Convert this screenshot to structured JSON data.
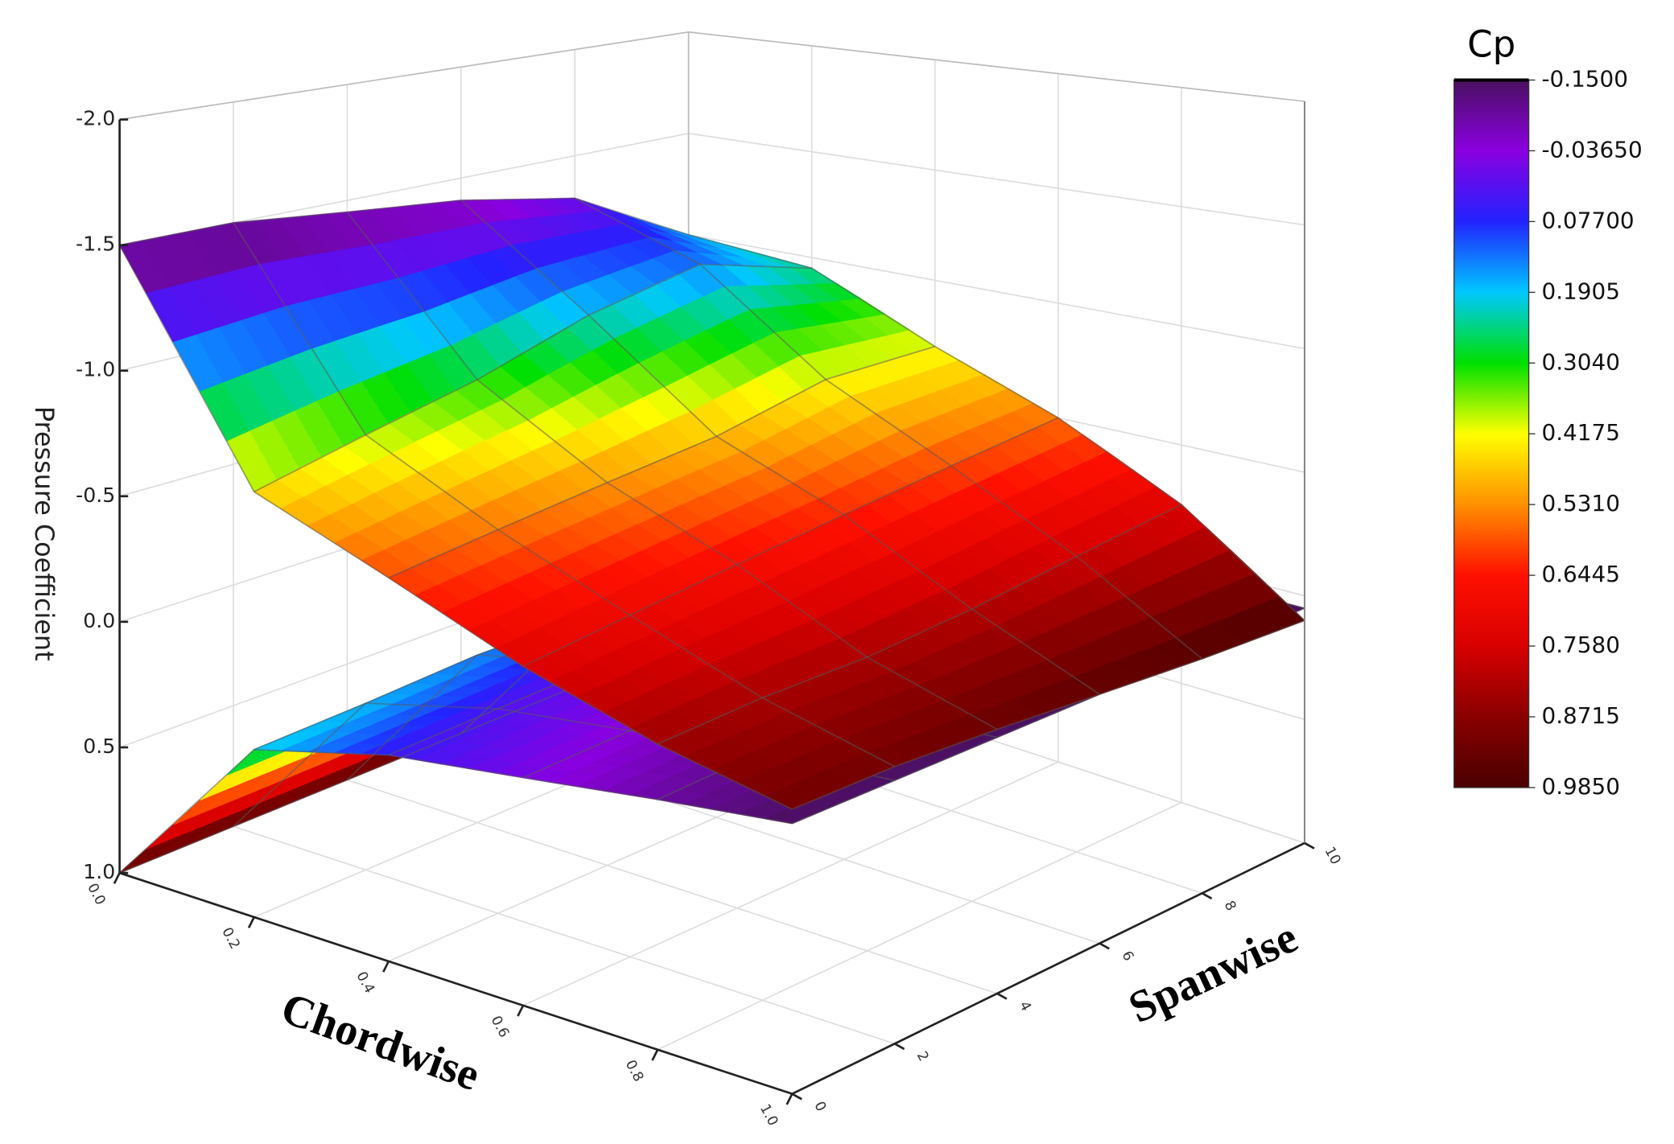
{
  "chart_data": {
    "type": "surface3d",
    "z_label": "Pressure Coefficient",
    "x_label": "Chordwise",
    "y_label": "Spanwise",
    "x": [
      0,
      0.2,
      0.4,
      0.6,
      0.8,
      1.0
    ],
    "y": [
      0,
      2,
      4,
      6,
      8,
      10
    ],
    "xlim": [
      0,
      1
    ],
    "ylim": [
      0,
      10
    ],
    "zlim": [
      -2,
      1
    ],
    "z_reversed": true,
    "grid": true,
    "xticks": [
      {
        "value": 0,
        "label": "0.0"
      },
      0.2,
      0.4,
      0.6,
      0.8,
      {
        "value": 1,
        "label": "1.0"
      }
    ],
    "yticks": [
      0,
      2,
      4,
      6,
      8,
      10
    ],
    "zticks": [
      {
        "value": -2,
        "label": "-2.0"
      },
      {
        "value": -1.5,
        "label": "-1.5"
      },
      {
        "value": -1,
        "label": "-1.0"
      },
      {
        "value": -0.5,
        "label": "-0.5"
      },
      {
        "value": 0,
        "label": "0.0"
      },
      0.5,
      {
        "value": 1,
        "label": "1.0"
      }
    ],
    "series": [
      {
        "values": [
          [
            1.0,
            0.35,
            0.22,
            0.16,
            0.1,
            0.05
          ],
          [
            1.0,
            0.33,
            0.2,
            0.14,
            0.08,
            0.05
          ],
          [
            1.0,
            0.3,
            0.18,
            0.12,
            0.07,
            0.05
          ],
          [
            1.0,
            0.3,
            0.16,
            0.1,
            0.06,
            0.05
          ],
          [
            1.0,
            0.28,
            0.15,
            0.09,
            0.06,
            0.05
          ],
          [
            1.0,
            0.25,
            0.12,
            0.08,
            0.05,
            0.05
          ]
        ]
      },
      {
        "values": [
          [
            -1.5,
            -0.65,
            -0.45,
            -0.25,
            -0.1,
            0.0
          ],
          [
            -1.5,
            -0.75,
            -0.5,
            -0.3,
            -0.12,
            0.0
          ],
          [
            -1.45,
            -0.85,
            -0.55,
            -0.35,
            -0.12,
            0.02
          ],
          [
            -1.4,
            -1.0,
            -0.6,
            -0.4,
            -0.15,
            0.05
          ],
          [
            -1.3,
            -1.1,
            -0.7,
            -0.45,
            -0.2,
            0.08
          ],
          [
            -1.0,
            -0.95,
            -0.7,
            -0.5,
            -0.25,
            0.1
          ]
        ]
      }
    ],
    "colorbar": {
      "title": "Cp",
      "ticks": [
        {
          "value": -0.15,
          "label": "-0.1500"
        },
        {
          "value": -0.0365,
          "label": "-0.03650"
        },
        {
          "value": 0.077,
          "label": "0.07700"
        },
        {
          "value": 0.1905,
          "label": "0.1905"
        },
        {
          "value": 0.304,
          "label": "0.3040"
        },
        {
          "value": 0.4175,
          "label": "0.4175"
        },
        {
          "value": 0.531,
          "label": "0.5310"
        },
        {
          "value": 0.6445,
          "label": "0.6445"
        },
        {
          "value": 0.758,
          "label": "0.7580"
        },
        {
          "value": 0.8715,
          "label": "0.8715"
        },
        {
          "value": 0.985,
          "label": "0.9850"
        }
      ],
      "colors": [
        "#4a1060",
        "#8a00e0",
        "#2222ff",
        "#00c8ff",
        "#00e000",
        "#ffff00",
        "#ff9000",
        "#ff1000",
        "#d80000",
        "#8a0000",
        "#4a0000"
      ]
    }
  }
}
